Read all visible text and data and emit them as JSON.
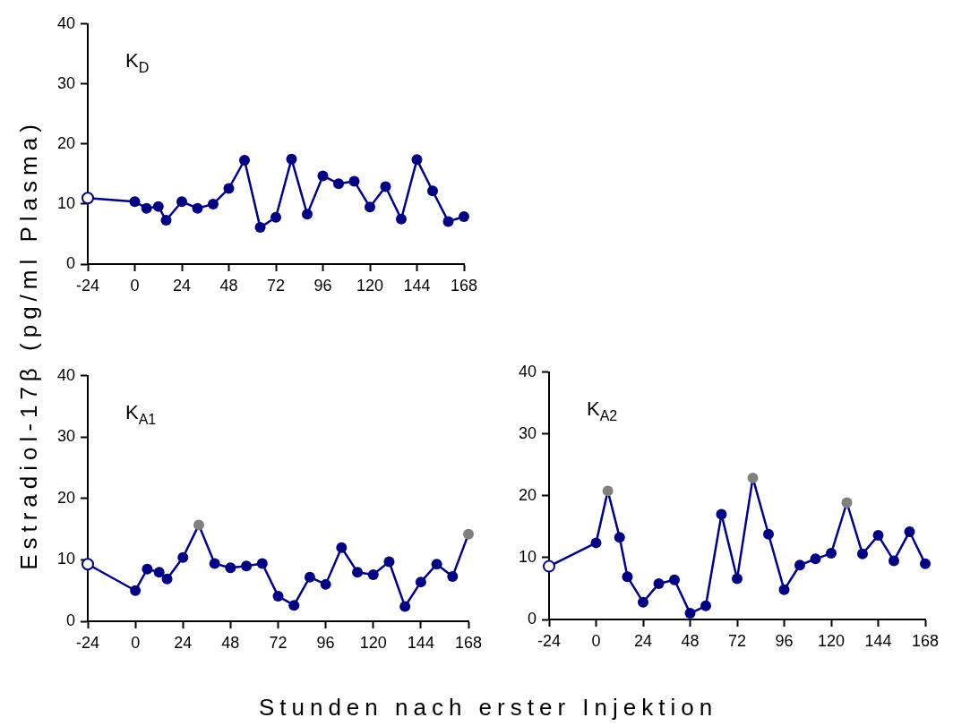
{
  "chart_data": [
    {
      "type": "line",
      "ylabel": "Estradiol-17β (pg/ml Plasma)",
      "annotations": [
        "K$_{D}$"
      ],
      "x": [
        -24,
        0,
        6,
        12,
        16,
        24,
        32,
        40,
        48,
        56,
        64,
        72,
        80,
        88,
        96,
        104,
        112,
        120,
        128,
        136,
        144,
        152,
        160,
        168
      ],
      "series": [
        {
          "color": "#000080",
          "colors": [
            "#ffffff",
            "#000080",
            "#000080",
            "#000080",
            "#000080",
            "#000080",
            "#000080",
            "#000080",
            "#000080",
            "#000080",
            "#000080",
            "#000080",
            "#000080",
            "#000080",
            "#000080",
            "#000080",
            "#000080",
            "#000080",
            "#000080",
            "#000080",
            "#000080",
            "#000080",
            "#000080",
            "#000080"
          ],
          "values": [
            11.0,
            10.4,
            9.3,
            9.6,
            7.3,
            10.4,
            9.3,
            10.0,
            12.6,
            17.3,
            6.1,
            7.8,
            17.5,
            8.3,
            14.7,
            13.4,
            13.8,
            9.5,
            12.9,
            7.5,
            17.4,
            12.2,
            7.1,
            7.9
          ]
        }
      ],
      "xlim": [
        -24,
        168
      ],
      "xticks": [
        -24,
        0,
        24,
        48,
        72,
        96,
        120,
        144,
        168
      ],
      "ylim": [
        0,
        40
      ],
      "yticks": [
        0,
        10,
        20,
        30,
        40
      ],
      "marker": "circle",
      "line_style": "solid"
    },
    {
      "type": "line",
      "xlabel": "Stunden nach erster Injektion",
      "annotations": [
        "K$_{A1}$"
      ],
      "x": [
        -24,
        0,
        6,
        12,
        16,
        24,
        32,
        40,
        48,
        56,
        64,
        72,
        80,
        88,
        96,
        104,
        112,
        120,
        128,
        136,
        144,
        152,
        160,
        168
      ],
      "series": [
        {
          "color": "#000080",
          "colors": [
            "#ffffff",
            "#000080",
            "#000080",
            "#000080",
            "#000080",
            "#000080",
            "#808080",
            "#000080",
            "#000080",
            "#000080",
            "#000080",
            "#000080",
            "#000080",
            "#000080",
            "#000080",
            "#000080",
            "#000080",
            "#000080",
            "#000080",
            "#000080",
            "#000080",
            "#000080",
            "#000080",
            "#808080"
          ],
          "values": [
            9.3,
            5.0,
            8.5,
            8.0,
            6.9,
            10.4,
            15.7,
            9.4,
            8.7,
            9.0,
            9.4,
            4.1,
            2.6,
            7.2,
            6.0,
            12.0,
            8.0,
            7.6,
            9.7,
            2.4,
            6.4,
            9.3,
            7.3,
            14.2
          ]
        }
      ],
      "xlim": [
        -24,
        168
      ],
      "xticks": [
        -24,
        0,
        24,
        48,
        72,
        96,
        120,
        144,
        168
      ],
      "ylim": [
        0,
        40
      ],
      "yticks": [
        0,
        10,
        20,
        30,
        40
      ],
      "marker": "circle",
      "line_style": "solid"
    },
    {
      "type": "line",
      "annotations": [
        "K$_{A2}$"
      ],
      "x": [
        -24,
        0,
        6,
        12,
        16,
        24,
        32,
        40,
        48,
        56,
        64,
        72,
        80,
        88,
        96,
        104,
        112,
        120,
        128,
        136,
        144,
        152,
        160,
        168
      ],
      "series": [
        {
          "color": "#000080",
          "colors": [
            "#ffffff",
            "#000080",
            "#808080",
            "#000080",
            "#000080",
            "#000080",
            "#000080",
            "#000080",
            "#000080",
            "#000080",
            "#000080",
            "#000080",
            "#808080",
            "#000080",
            "#000080",
            "#000080",
            "#000080",
            "#000080",
            "#808080",
            "#000080",
            "#000080",
            "#000080",
            "#000080",
            "#000080"
          ],
          "values": [
            8.6,
            12.4,
            20.8,
            13.3,
            6.9,
            2.8,
            5.8,
            6.4,
            1.0,
            2.2,
            17.0,
            6.6,
            22.9,
            13.8,
            4.8,
            8.8,
            9.8,
            10.7,
            18.9,
            10.6,
            13.6,
            9.5,
            14.2,
            9.0
          ]
        }
      ],
      "xlim": [
        -24,
        168
      ],
      "xticks": [
        -24,
        0,
        24,
        48,
        72,
        96,
        120,
        144,
        168
      ],
      "ylim": [
        0,
        40
      ],
      "yticks": [
        0,
        10,
        20,
        30,
        40
      ],
      "marker": "circle",
      "line_style": "solid"
    }
  ]
}
